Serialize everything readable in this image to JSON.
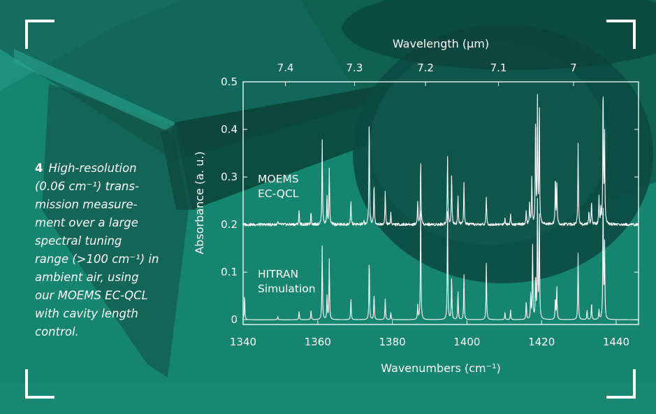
{
  "caption": {
    "number": "4",
    "text": "High-resolution\n(0.06 cm⁻¹) trans-\nmission measure-\nment over a large\nspectral tuning\nrange (>100 cm⁻¹) in\nambient air, using\nour MOEMS EC-QCL\nwith cavity length\ncontrol."
  },
  "colors": {
    "background": "#16856f",
    "line": "#ffffff",
    "dark_overlay": "#0d4c44"
  },
  "chart_data": {
    "type": "line",
    "title": "",
    "xlabel": "Wavenumbers (cm⁻¹)",
    "ylabel": "Absorbance (a. u.)",
    "top_xlabel": "Wavelength (µm)",
    "xlim": [
      1340,
      1446
    ],
    "ylim": [
      -0.01,
      0.5
    ],
    "x_ticks": [
      "1340",
      "1360",
      "1380",
      "1400",
      "1420",
      "1440"
    ],
    "y_ticks": [
      "0",
      "0.1",
      "0.2",
      "0.3",
      "0.4",
      "0.5"
    ],
    "top_ticks": [
      {
        "label": "7.4",
        "value": 7.4
      },
      {
        "label": "7.3",
        "value": 7.3
      },
      {
        "label": "7.2",
        "value": 7.2
      },
      {
        "label": "7.1",
        "value": 7.1
      },
      {
        "label": "7",
        "value": 7.0
      }
    ],
    "grid": false,
    "series": [
      {
        "name": "MOEMS EC-QCL",
        "label_lines": [
          "MOEMS",
          "EC-QCL"
        ],
        "baseline": 0.2,
        "peaks": [
          [
            1349.3,
            0.007
          ],
          [
            1355,
            0.03
          ],
          [
            1358.2,
            0.028
          ],
          [
            1361.2,
            0.18
          ],
          [
            1362.5,
            0.06
          ],
          [
            1363.1,
            0.12
          ],
          [
            1368.9,
            0.05
          ],
          [
            1372.4,
            0.006
          ],
          [
            1373.8,
            0.23
          ],
          [
            1375.1,
            0.09
          ],
          [
            1378.1,
            0.072
          ],
          [
            1379.6,
            0.025
          ],
          [
            1386.8,
            0.05
          ],
          [
            1387.6,
            0.135
          ],
          [
            1394.8,
            0.15
          ],
          [
            1395.9,
            0.11
          ],
          [
            1397.6,
            0.06
          ],
          [
            1399.2,
            0.09
          ],
          [
            1405.2,
            0.06
          ],
          [
            1410.2,
            0.015
          ],
          [
            1411.7,
            0.025
          ],
          [
            1415.9,
            0.03
          ],
          [
            1416.8,
            0.045
          ],
          [
            1417.4,
            0.1
          ],
          [
            1418.4,
            0.23
          ],
          [
            1418.9,
            0.26
          ],
          [
            1419.4,
            0.25
          ],
          [
            1423.7,
            0.1
          ],
          [
            1424.1,
            0.09
          ],
          [
            1429.8,
            0.17
          ],
          [
            1432.7,
            0.03
          ],
          [
            1433.4,
            0.05
          ],
          [
            1435.4,
            0.06
          ],
          [
            1435.9,
            0.03
          ],
          [
            1436.5,
            0.3
          ],
          [
            1436.9,
            0.19
          ]
        ]
      },
      {
        "name": "HITRAN Simulation",
        "label_lines": [
          "HITRAN",
          "Simulation"
        ],
        "baseline": 0.0,
        "peaks": [
          [
            1340.4,
            0.05
          ],
          [
            1349.3,
            0.007
          ],
          [
            1355,
            0.017
          ],
          [
            1358.2,
            0.02
          ],
          [
            1361.2,
            0.155
          ],
          [
            1362.5,
            0.05
          ],
          [
            1363.1,
            0.128
          ],
          [
            1368.9,
            0.045
          ],
          [
            1373.8,
            0.128
          ],
          [
            1375.1,
            0.055
          ],
          [
            1378.1,
            0.045
          ],
          [
            1379.6,
            0.015
          ],
          [
            1386.8,
            0.03
          ],
          [
            1387.6,
            0.245
          ],
          [
            1394.8,
            0.235
          ],
          [
            1395.9,
            0.09
          ],
          [
            1397.6,
            0.06
          ],
          [
            1399.2,
            0.095
          ],
          [
            1405.2,
            0.12
          ],
          [
            1410.2,
            0.015
          ],
          [
            1411.7,
            0.02
          ],
          [
            1415.9,
            0.04
          ],
          [
            1417.1,
            0.055
          ],
          [
            1417.6,
            0.155
          ],
          [
            1418.4,
            0.09
          ],
          [
            1418.9,
            0.245
          ],
          [
            1419.4,
            0.23
          ],
          [
            1423.7,
            0.045
          ],
          [
            1424.1,
            0.07
          ],
          [
            1429.8,
            0.14
          ],
          [
            1432.2,
            0.02
          ],
          [
            1433.4,
            0.035
          ],
          [
            1435.4,
            0.02
          ],
          [
            1436.5,
            0.26
          ],
          [
            1436.9,
            0.16
          ]
        ]
      }
    ]
  }
}
